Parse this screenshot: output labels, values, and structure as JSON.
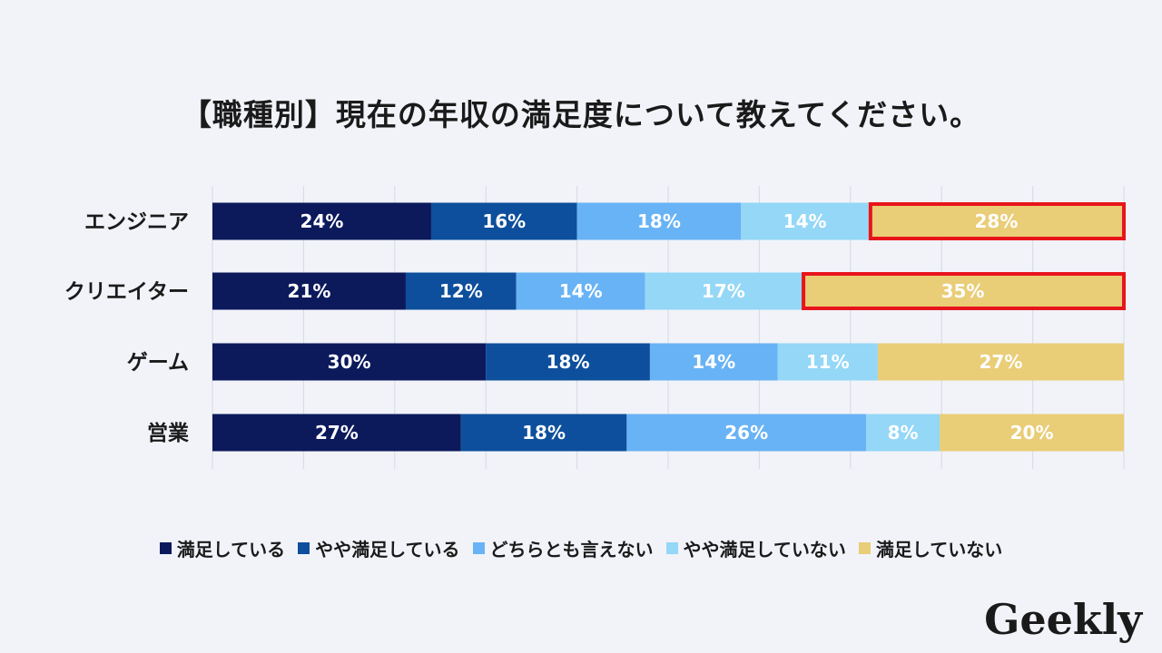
{
  "title": "【職種別】現在の年収の満足度について教えてください。",
  "logo_text": "Geekly",
  "highlight_color": "#e8141b",
  "chart_data": {
    "type": "bar",
    "orientation": "horizontal",
    "stacked": true,
    "percent_scale": true,
    "xlim": [
      0,
      100
    ],
    "grid": true,
    "legend_position": "bottom",
    "categories": [
      "エンジニア",
      "クリエイター",
      "ゲーム",
      "営業"
    ],
    "series": [
      {
        "name": "満足している",
        "color": "#0c1a5c",
        "values": [
          24,
          21,
          30,
          27
        ]
      },
      {
        "name": "やや満足している",
        "color": "#0d4f9c",
        "values": [
          16,
          12,
          18,
          18
        ]
      },
      {
        "name": "どちらとも言えない",
        "color": "#68b3f5",
        "values": [
          18,
          14,
          14,
          26
        ]
      },
      {
        "name": "やや満足していない",
        "color": "#94d7f7",
        "values": [
          14,
          17,
          11,
          8
        ]
      },
      {
        "name": "満足していない",
        "color": "#e9cd77",
        "values": [
          28,
          35,
          27,
          20
        ]
      }
    ],
    "data_labels": [
      [
        "24%",
        "16%",
        "18%",
        "14%",
        "28%"
      ],
      [
        "21%",
        "12%",
        "14%",
        "17%",
        "35%"
      ],
      [
        "30%",
        "18%",
        "14%",
        "11%",
        "27%"
      ],
      [
        "27%",
        "18%",
        "26%",
        "8%",
        "20%"
      ]
    ],
    "highlighted_segments": [
      {
        "category": "エンジニア",
        "series": "満足していない"
      },
      {
        "category": "クリエイター",
        "series": "満足していない"
      }
    ]
  }
}
